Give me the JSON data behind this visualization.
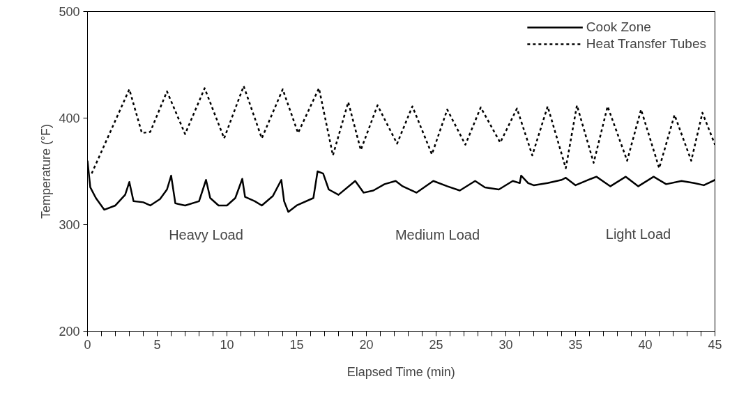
{
  "chart_data": {
    "type": "line",
    "xlabel": "Elapsed Time (min)",
    "ylabel": "Temperature (°F)",
    "xlim": [
      0,
      45
    ],
    "ylim": [
      200,
      500
    ],
    "xticks": [
      0,
      {
        "value": 1,
        "label": null
      },
      {
        "value": 2,
        "label": null
      },
      {
        "value": 3,
        "label": null
      },
      {
        "value": 4,
        "label": null
      },
      5,
      {
        "value": 6,
        "label": null
      },
      {
        "value": 7,
        "label": null
      },
      {
        "value": 8,
        "label": null
      },
      {
        "value": 9,
        "label": null
      },
      10,
      {
        "value": 11,
        "label": null
      },
      {
        "value": 12,
        "label": null
      },
      {
        "value": 13,
        "label": null
      },
      {
        "value": 14,
        "label": null
      },
      15,
      {
        "value": 16,
        "label": null
      },
      {
        "value": 17,
        "label": null
      },
      {
        "value": 18,
        "label": null
      },
      {
        "value": 19,
        "label": null
      },
      20,
      {
        "value": 21,
        "label": null
      },
      {
        "value": 22,
        "label": null
      },
      {
        "value": 23,
        "label": null
      },
      {
        "value": 24,
        "label": null
      },
      25,
      {
        "value": 26,
        "label": null
      },
      {
        "value": 27,
        "label": null
      },
      {
        "value": 28,
        "label": null
      },
      {
        "value": 29,
        "label": null
      },
      30,
      {
        "value": 31,
        "label": null
      },
      {
        "value": 32,
        "label": null
      },
      {
        "value": 33,
        "label": null
      },
      {
        "value": 34,
        "label": null
      },
      35,
      {
        "value": 36,
        "label": null
      },
      {
        "value": 37,
        "label": null
      },
      {
        "value": 38,
        "label": null
      },
      {
        "value": 39,
        "label": null
      },
      40,
      {
        "value": 41,
        "label": null
      },
      {
        "value": 42,
        "label": null
      },
      {
        "value": 43,
        "label": null
      },
      {
        "value": 44,
        "label": null
      },
      45
    ],
    "yticks": [
      200,
      300,
      400,
      500
    ],
    "grid": false,
    "legend": "top right",
    "marker": "none",
    "series": [
      {
        "name": "Cook Zone",
        "color": "#000000",
        "line_style": "solid",
        "x": [
          0,
          0.2,
          0.6,
          1.2,
          2,
          2.7,
          3,
          3.3,
          4,
          4.5,
          5.2,
          5.7,
          6,
          6.3,
          7,
          8,
          8.5,
          8.8,
          9.4,
          10,
          10.6,
          11.1,
          11.3,
          12,
          12.5,
          13.3,
          13.9,
          14.1,
          14.4,
          15,
          16.2,
          16.5,
          16.9,
          17.3,
          18,
          19.2,
          19.8,
          20.5,
          21.3,
          22.1,
          22.6,
          23.6,
          24.8,
          25.8,
          26.7,
          27.8,
          28.5,
          29.5,
          30.5,
          31,
          31.1,
          31.6,
          32,
          33,
          34,
          34.3,
          35,
          36.1,
          36.5,
          37.5,
          38.6,
          39.5,
          40.6,
          41.5,
          42.6,
          43.5,
          44.2,
          45
        ],
        "values": [
          360,
          335,
          325,
          314,
          318,
          328,
          340,
          322,
          321,
          318,
          324,
          333,
          346,
          320,
          318,
          322,
          342,
          325,
          318,
          318,
          325,
          343,
          326,
          322,
          318,
          327,
          342,
          322,
          312,
          318,
          325,
          350,
          348,
          333,
          328,
          341,
          330,
          332,
          338,
          341,
          336,
          330,
          341,
          336,
          332,
          341,
          335,
          333,
          341,
          339,
          346,
          339,
          337,
          339,
          342,
          344,
          337,
          343,
          345,
          336,
          345,
          336,
          345,
          338,
          341,
          339,
          337,
          342
        ]
      },
      {
        "name": "Heat Transfer Tubes",
        "color": "#000000",
        "line_style": "dashed",
        "x": [
          0.3,
          3,
          3.9,
          4.5,
          5.7,
          7,
          8.4,
          9.8,
          11.2,
          12.5,
          14,
          15.1,
          16.6,
          17.6,
          18.7,
          19.6,
          20.8,
          22.2,
          23.3,
          24.7,
          25.8,
          27.1,
          28.2,
          29.6,
          30.8,
          31.9,
          33,
          34.3,
          35.1,
          36.3,
          37.3,
          38.7,
          39.7,
          41,
          42.1,
          43.3,
          44.1,
          45
        ],
        "values": [
          348,
          427,
          386,
          387,
          425,
          385,
          428,
          381,
          430,
          381,
          427,
          386,
          428,
          365,
          415,
          370,
          412,
          376,
          411,
          366,
          408,
          375,
          410,
          377,
          409,
          365,
          411,
          353,
          412,
          358,
          411,
          360,
          408,
          353,
          403,
          360,
          405,
          375
        ]
      }
    ],
    "annotations": [
      "Heavy Load",
      "Medium Load",
      "Light Load"
    ]
  }
}
